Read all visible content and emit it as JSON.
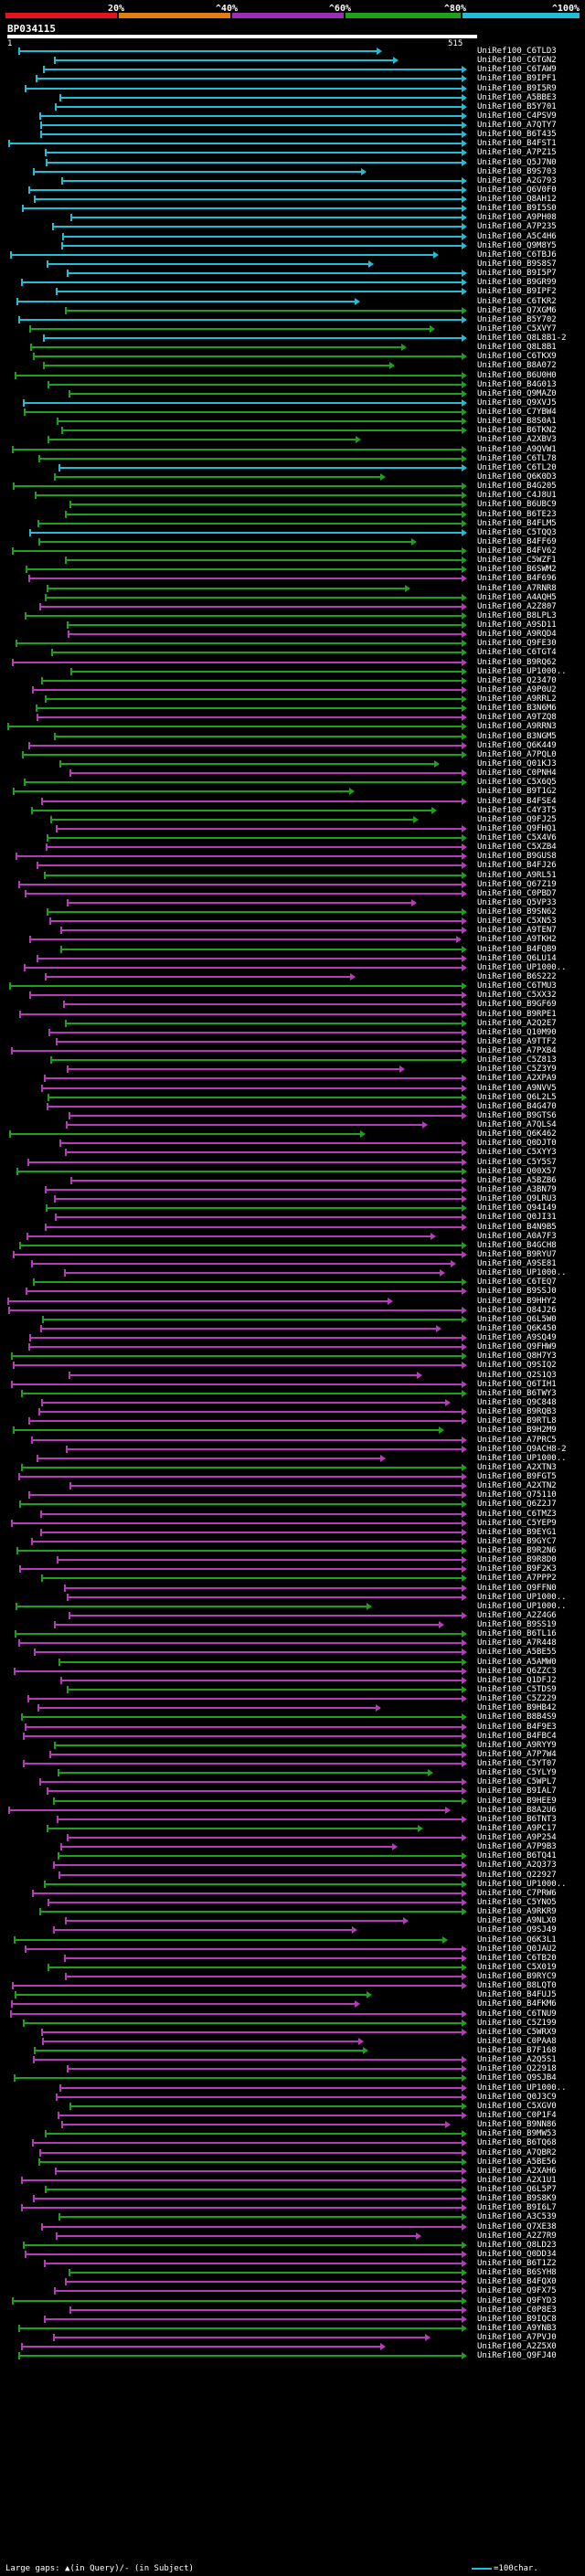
{
  "scale": {
    "labels": [
      "20%",
      "^40%",
      "^60%",
      "^80%",
      "^100%"
    ],
    "colors": [
      "#e3141e",
      "#e07e12",
      "#9b2fb3",
      "#1ea01c",
      "#23bcd5"
    ]
  },
  "query": {
    "name": "BP034115",
    "start": "1",
    "end": "515"
  },
  "legend": {
    "gaps": "Large gaps: ▲(in Query)/- (in Subject)",
    "scale": "=100char."
  },
  "colors": {
    "cyan": "#23bcd5",
    "green": "#1ea01c",
    "magenta": "#b53bb8",
    "white": "#ffffff"
  },
  "hits": [
    "UniRef100_C6TLD3",
    "UniRef100_C6TGN2",
    "UniRef100_C6TAW9",
    "UniRef100_B9IPF1",
    "UniRef100_B9I5R9",
    "UniRef100_A5BBE3",
    "UniRef100_B5Y701",
    "UniRef100_C4PSV9",
    "UniRef100_A7QTY7",
    "UniRef100_B6T435",
    "UniRef100_B4FST1",
    "UniRef100_A7PZ15",
    "UniRef100_Q5J7N0",
    "UniRef100_B9S703",
    "UniRef100_A2G793",
    "UniRef100_Q6V0F0",
    "UniRef100_Q8AH12",
    "UniRef100_B9I5S0",
    "UniRef100_A9PH08",
    "UniRef100_A7P235",
    "UniRef100_A5C4H6",
    "UniRef100_Q9M8Y5",
    "UniRef100_C6TBJ6",
    "UniRef100_B9S8S7",
    "UniRef100_B9I5P7",
    "UniRef100_B9GR99",
    "UniRef100_B9IPF2",
    "UniRef100_C6TKR2",
    "UniRef100_Q7XGM6",
    "UniRef100_B5Y702",
    "UniRef100_C5XVY7",
    "UniRef100_Q8L8B1-2",
    "UniRef100_Q8L8B1",
    "UniRef100_C6TKX9",
    "UniRef100_B8A072",
    "UniRef100_B6U0H0",
    "UniRef100_B4G013",
    "UniRef100_Q9MAZ0",
    "UniRef100_Q9XVJ5",
    "UniRef100_C7YBW4",
    "UniRef100_B8S0A1",
    "UniRef100_B6TKN2",
    "UniRef100_A2XBV3",
    "UniRef100_A9QVW1",
    "UniRef100_C6TL78",
    "UniRef100_C6TL20",
    "UniRef100_Q6K0D3",
    "UniRef100_B4G205",
    "UniRef100_C4J8U1",
    "UniRef100_B6UBC9",
    "UniRef100_B6TE23",
    "UniRef100_B4FLM5",
    "UniRef100_C5TQQ3",
    "UniRef100_B4FF69",
    "UniRef100_B4FV62",
    "UniRef100_C5WZF1",
    "UniRef100_B6SWM2",
    "UniRef100_B4F696",
    "UniRef100_A7RNR8",
    "UniRef100_A4AQH5",
    "UniRef100_A2Z807",
    "UniRef100_B8LPL3",
    "UniRef100_A9SD11",
    "UniRef100_A9RQD4",
    "UniRef100_Q9FE30",
    "UniRef100_C6TGT4",
    "UniRef100_B9RQ62",
    "UniRef100_UP1000..",
    "UniRef100_Q23470",
    "UniRef100_A9P0U2",
    "UniRef100_A9RRL2",
    "UniRef100_B3N6M6",
    "UniRef100_A9TZQ8",
    "UniRef100_A9RRN3",
    "UniRef100_B3NGM5",
    "UniRef100_Q6K449",
    "UniRef100_A7PQL0",
    "UniRef100_Q01KJ3",
    "UniRef100_C0PNH4",
    "UniRef100_C5X6Q5",
    "UniRef100_B9T1G2",
    "UniRef100_B4FSE4",
    "UniRef100_C4Y3T5",
    "UniRef100_Q9FJ25",
    "UniRef100_Q9FHQ1",
    "UniRef100_C5X4V6",
    "UniRef100_C5XZB4",
    "UniRef100_B9GUS8",
    "UniRef100_B4FJ26",
    "UniRef100_A9RL51",
    "UniRef100_Q67Z19",
    "UniRef100_C0PBD7",
    "UniRef100_Q5VP33",
    "UniRef100_B9SN62",
    "UniRef100_C5XN53",
    "UniRef100_A9TEN7",
    "UniRef100_A9TKH2",
    "UniRef100_B4FQB9",
    "UniRef100_Q6LU14",
    "UniRef100_UP1000..",
    "UniRef100_B6S222",
    "UniRef100_C6TMU3",
    "UniRef100_C5XX32",
    "UniRef100_B9GF69",
    "UniRef100_B9RPE1",
    "UniRef100_A2Q2E7",
    "UniRef100_Q10M90",
    "UniRef100_A9TTF2",
    "UniRef100_A7PXB4",
    "UniRef100_C5Z813",
    "UniRef100_C5Z3Y9",
    "UniRef100_A2XPA9",
    "UniRef100_A9NVV5",
    "UniRef100_Q6L2L5",
    "UniRef100_B4G470",
    "UniRef100_B9GTS6",
    "UniRef100_A7QLS4",
    "UniRef100_Q6K462",
    "UniRef100_Q0DJT0",
    "UniRef100_C5XYY3",
    "UniRef100_C5Y5S7",
    "UniRef100_Q00X57",
    "UniRef100_A5BZB6",
    "UniRef100_A3BN79",
    "UniRef100_Q9LRU3",
    "UniRef100_Q94I49",
    "UniRef100_Q0JI31",
    "UniRef100_B4N9B5",
    "UniRef100_A0A7F3",
    "UniRef100_B4GCH8",
    "UniRef100_B9RYU7",
    "UniRef100_A9SE81",
    "UniRef100_UP1000..",
    "UniRef100_C6TEQ7",
    "UniRef100_B9SSJ0",
    "UniRef100_B9HHY2",
    "UniRef100_Q84J26",
    "UniRef100_Q6L5W0",
    "UniRef100_Q6K450",
    "UniRef100_A9SQ49",
    "UniRef100_Q9FHW9",
    "UniRef100_Q8H7Y3",
    "UniRef100_Q9SIQ2",
    "UniRef100_Q2S1Q3",
    "UniRef100_Q6TIH1",
    "UniRef100_B6TWY3",
    "UniRef100_Q9C848",
    "UniRef100_B9RQB3",
    "UniRef100_B9RTL8",
    "UniRef100_B9H2M9",
    "UniRef100_A7PRC5",
    "UniRef100_Q9ACH8-2",
    "UniRef100_UP1000..",
    "UniRef100_A2XTN3",
    "UniRef100_B9FGT5",
    "UniRef100_A2XTN2",
    "UniRef100_Q75110",
    "UniRef100_Q6Z2J7",
    "UniRef100_C6TMZ3",
    "UniRef100_C5YEP9",
    "UniRef100_B9EYG1",
    "UniRef100_B9GYC7",
    "UniRef100_B9R2N6",
    "UniRef100_B9R8D0",
    "UniRef100_B9F2K3",
    "UniRef100_A7PPP2",
    "UniRef100_Q9FFN0",
    "UniRef100_UP1000..",
    "UniRef100_UP1000..",
    "UniRef100_A2Z4G6",
    "UniRef100_B9SS19",
    "UniRef100_B6TL16",
    "UniRef100_A7R448",
    "UniRef100_A5BE55",
    "UniRef100_A5AMW0",
    "UniRef100_Q6ZZC3",
    "UniRef100_Q1DFJ2",
    "UniRef100_C5TDS9",
    "UniRef100_C5Z229",
    "UniRef100_B9HB42",
    "UniRef100_B8B4S9",
    "UniRef100_B4F9E3",
    "UniRef100_B4FBC4",
    "UniRef100_A9RYY9",
    "UniRef100_A7P7W4",
    "UniRef100_C5YT07",
    "UniRef100_C5YLY9",
    "UniRef100_C5WPL7",
    "UniRef100_B9IAL7",
    "UniRef100_B9HEE9",
    "UniRef100_B8A2U6",
    "UniRef100_B6TNT3",
    "UniRef100_A9PC17",
    "UniRef100_A9P254",
    "UniRef100_A7P9B3",
    "UniRef100_B6TQ41",
    "UniRef100_A2Q373",
    "UniRef100_Q22927",
    "UniRef100_UP1000..",
    "UniRef100_C7PRW6",
    "UniRef100_C5YNO5",
    "UniRef100_A9RKR9",
    "UniRef100_A9NLX0",
    "UniRef100_Q9SJ49",
    "UniRef100_Q6K3L1",
    "UniRef100_Q0JAU2",
    "UniRef100_C6TB20",
    "UniRef100_C5X019",
    "UniRef100_B9RYC9",
    "UniRef100_B8LQT0",
    "UniRef100_B4FUJ5",
    "UniRef100_B4FKM6",
    "UniRef100_C6TNU9",
    "UniRef100_C5Z199",
    "UniRef100_C5WRX9",
    "UniRef100_C0PAA8",
    "UniRef100_B7F168",
    "UniRef100_A2Q5S1",
    "UniRef100_Q22918",
    "UniRef100_Q9SJB4",
    "UniRef100_UP1000..",
    "UniRef100_Q0J3C9",
    "UniRef100_C5XGV0",
    "UniRef100_C0P1F4",
    "UniRef100_B9NN86",
    "UniRef100_B9MW53",
    "UniRef100_B6TQ68",
    "UniRef100_A7QBR2",
    "UniRef100_A5BE56",
    "UniRef100_A2XAH6",
    "UniRef100_A2X1U1",
    "UniRef100_Q6L5P7",
    "UniRef100_B9S8K9",
    "UniRef100_B9I6L7",
    "UniRef100_A3C539",
    "UniRef100_Q7XE38",
    "UniRef100_A2Z7R9",
    "UniRef100_Q8LD23",
    "UniRef100_Q0DD34",
    "UniRef100_B6T1Z2",
    "UniRef100_B6SYH8",
    "UniRef100_B4FQX0",
    "UniRef100_Q9FX75",
    "UniRef100_Q9FYD3",
    "UniRef100_C0P8E3",
    "UniRef100_B9IQC8",
    "UniRef100_A9YNB3",
    "UniRef100_A7PVJ0",
    "UniRef100_A2Z5X0",
    "UniRef100_Q9FJ40"
  ]
}
